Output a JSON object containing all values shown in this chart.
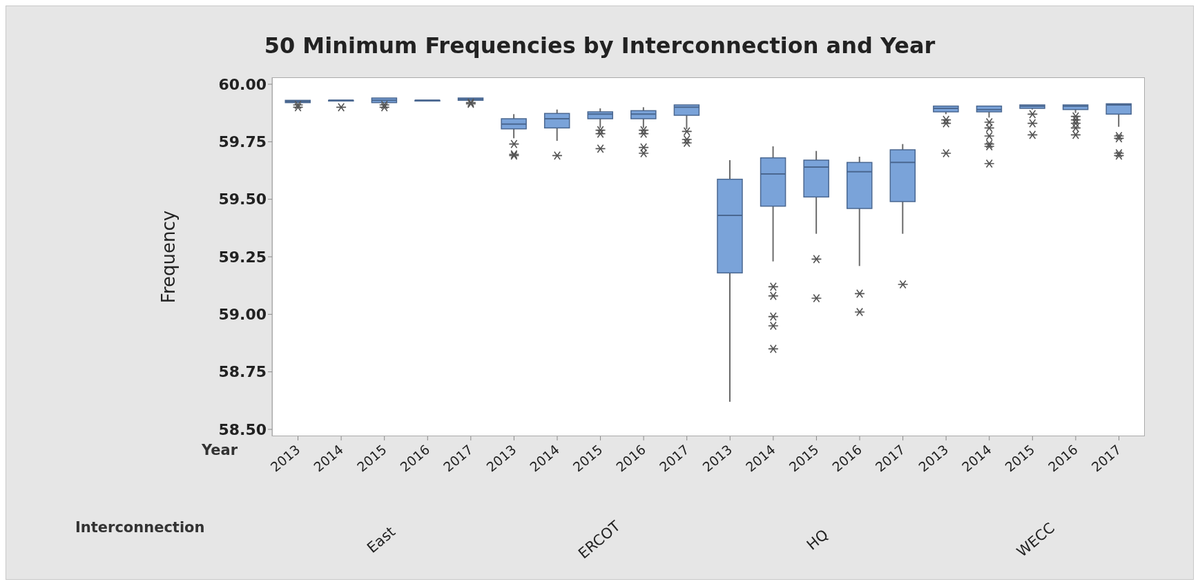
{
  "chart_data": {
    "type": "box",
    "title": "50 Minimum Frequencies by Interconnection and Year",
    "ylabel": "Frequency",
    "xlabel": "Year",
    "categories": [
      "2013",
      "2014",
      "2015",
      "2016",
      "2017",
      "2013",
      "2014",
      "2015",
      "2016",
      "2017",
      "2013",
      "2014",
      "2015",
      "2016",
      "2017",
      "2013",
      "2014",
      "2015",
      "2016",
      "2017"
    ],
    "annotations": [
      "Interconnection",
      "East",
      "ERCOT",
      "HQ",
      "WECC"
    ],
    "ylim": [
      58.47,
      60.03
    ],
    "yticks": [
      {
        "value": 58.5,
        "label": "58.50"
      },
      {
        "value": 58.75,
        "label": "58.75"
      },
      {
        "value": 59,
        "label": "59.00"
      },
      {
        "value": 59.25,
        "label": "59.25"
      },
      {
        "value": 59.5,
        "label": "59.50"
      },
      {
        "value": 59.75,
        "label": "59.75"
      },
      {
        "value": 60,
        "label": "60.00"
      }
    ],
    "series": [
      {
        "color": "#7aa3d9",
        "boxes": [
          {
            "low": 59.92,
            "q1": 59.92,
            "median": 59.925,
            "q3": 59.93,
            "high": 59.93,
            "outliers": [
              59.91,
              59.9
            ]
          },
          {
            "low": 59.93,
            "q1": 59.93,
            "median": 59.93,
            "q3": 59.93,
            "high": 59.93,
            "outliers": [
              59.9
            ]
          },
          {
            "low": 59.92,
            "q1": 59.92,
            "median": 59.93,
            "q3": 59.94,
            "high": 59.94,
            "outliers": [
              59.91,
              59.9
            ]
          },
          {
            "low": 59.93,
            "q1": 59.93,
            "median": 59.93,
            "q3": 59.93,
            "high": 59.93
          },
          {
            "low": 59.93,
            "q1": 59.93,
            "median": 59.935,
            "q3": 59.94,
            "high": 59.94,
            "outliers": [
              59.92,
              59.915
            ]
          },
          {
            "low": 59.765,
            "q1": 59.806,
            "median": 59.827,
            "q3": 59.85,
            "high": 59.87,
            "outliers": [
              59.74,
              59.695,
              59.69
            ]
          },
          {
            "low": 59.754,
            "q1": 59.81,
            "median": 59.85,
            "q3": 59.873,
            "high": 59.89,
            "outliers": [
              59.69
            ]
          },
          {
            "low": 59.81,
            "q1": 59.85,
            "median": 59.87,
            "q3": 59.88,
            "high": 59.895,
            "outliers": [
              59.8,
              59.785,
              59.72
            ]
          },
          {
            "low": 59.81,
            "q1": 59.85,
            "median": 59.87,
            "q3": 59.885,
            "high": 59.9,
            "outliers": [
              59.8,
              59.785,
              59.725,
              59.7
            ]
          },
          {
            "low": 59.805,
            "q1": 59.865,
            "median": 59.9,
            "q3": 59.91,
            "high": 59.91,
            "outliers": [
              59.795,
              59.76,
              59.745
            ]
          },
          {
            "low": 58.62,
            "q1": 59.18,
            "median": 59.43,
            "q3": 59.587,
            "high": 59.67
          },
          {
            "low": 59.23,
            "q1": 59.47,
            "median": 59.61,
            "q3": 59.68,
            "high": 59.73,
            "outliers": [
              59.12,
              59.08,
              58.99,
              58.95,
              58.85
            ]
          },
          {
            "low": 59.35,
            "q1": 59.51,
            "median": 59.64,
            "q3": 59.67,
            "high": 59.71,
            "outliers": [
              59.24,
              59.07
            ]
          },
          {
            "low": 59.21,
            "q1": 59.46,
            "median": 59.62,
            "q3": 59.66,
            "high": 59.685,
            "outliers": [
              59.09,
              59.01
            ]
          },
          {
            "low": 59.35,
            "q1": 59.49,
            "median": 59.66,
            "q3": 59.715,
            "high": 59.74,
            "outliers": [
              59.13
            ]
          },
          {
            "low": 59.87,
            "q1": 59.88,
            "median": 59.895,
            "q3": 59.905,
            "high": 59.905,
            "outliers": [
              59.845,
              59.83,
              59.7
            ]
          },
          {
            "low": 59.855,
            "q1": 59.88,
            "median": 59.89,
            "q3": 59.905,
            "high": 59.905,
            "outliers": [
              59.835,
              59.81,
              59.775,
              59.74,
              59.73,
              59.655
            ]
          },
          {
            "low": 59.89,
            "q1": 59.895,
            "median": 59.905,
            "q3": 59.91,
            "high": 59.91,
            "outliers": [
              59.87,
              59.83,
              59.78
            ]
          },
          {
            "low": 59.875,
            "q1": 59.89,
            "median": 59.905,
            "q3": 59.91,
            "high": 59.91,
            "outliers": [
              59.86,
              59.845,
              59.83,
              59.81,
              59.78
            ]
          },
          {
            "low": 59.815,
            "q1": 59.87,
            "median": 59.91,
            "q3": 59.915,
            "high": 59.915,
            "outliers": [
              59.775,
              59.765,
              59.7,
              59.69
            ]
          }
        ]
      }
    ]
  }
}
